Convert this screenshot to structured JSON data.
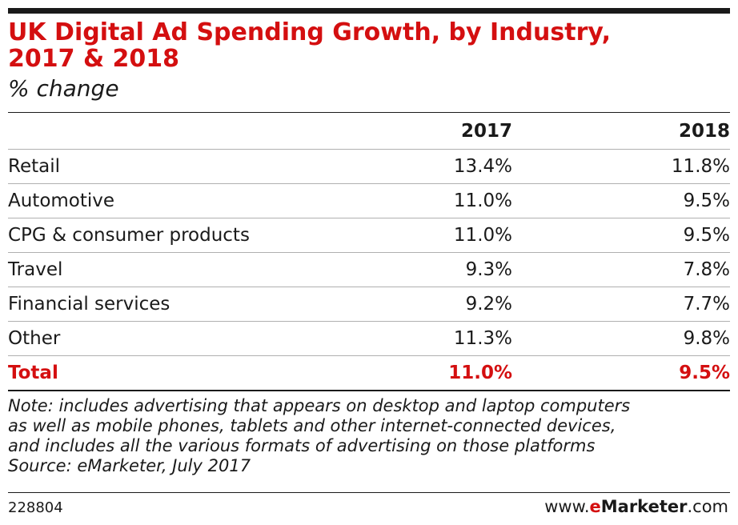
{
  "title_line1": "UK Digital Ad Spending Growth, by Industry,",
  "title_line2": "2017 & 2018",
  "subtitle": "% change",
  "chart_data": {
    "type": "table",
    "columns": [
      "",
      "2017",
      "2018"
    ],
    "rows": [
      {
        "label": "Retail",
        "v2017": "13.4%",
        "v2018": "11.8%"
      },
      {
        "label": "Automotive",
        "v2017": "11.0%",
        "v2018": "9.5%"
      },
      {
        "label": "CPG & consumer products",
        "v2017": "11.0%",
        "v2018": "9.5%"
      },
      {
        "label": "Travel",
        "v2017": "9.3%",
        "v2018": "7.8%"
      },
      {
        "label": "Financial services",
        "v2017": "9.2%",
        "v2018": "7.7%"
      },
      {
        "label": "Other",
        "v2017": "11.3%",
        "v2018": "9.8%"
      }
    ],
    "total": {
      "label": "Total",
      "v2017": "11.0%",
      "v2018": "9.5%"
    }
  },
  "note_lines": [
    "Note: includes advertising that appears on desktop and laptop computers",
    "as well as mobile phones, tablets and other internet-connected devices,",
    "and includes all the various formats of advertising on those platforms",
    "Source: eMarketer, July 2017"
  ],
  "footer": {
    "chart_id": "228804",
    "brand_prefix": "www.",
    "brand_e": "e",
    "brand_name": "Marketer",
    "brand_suffix": ".com"
  },
  "colors": {
    "accent": "#d40f10",
    "text": "#1a1a1a"
  }
}
